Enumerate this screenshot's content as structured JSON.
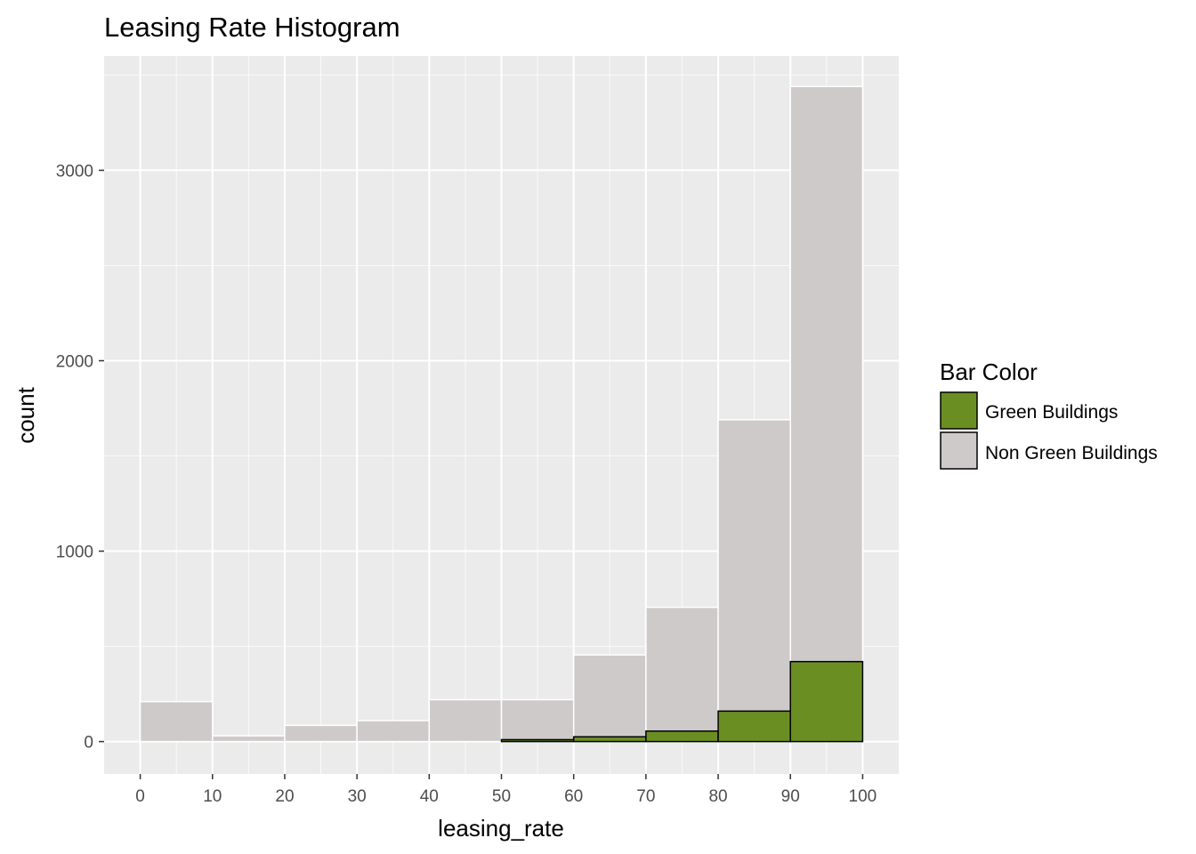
{
  "chart_data": {
    "type": "bar",
    "title": "Leasing Rate Histogram",
    "xlabel": "leasing_rate",
    "ylabel": "count",
    "bins": [
      [
        0,
        10
      ],
      [
        10,
        20
      ],
      [
        20,
        30
      ],
      [
        30,
        40
      ],
      [
        40,
        50
      ],
      [
        50,
        60
      ],
      [
        60,
        70
      ],
      [
        70,
        80
      ],
      [
        80,
        90
      ],
      [
        90,
        100
      ]
    ],
    "xlim": [
      -5,
      105
    ],
    "ylim": [
      -170,
      3600
    ],
    "x_ticks": [
      0,
      10,
      20,
      30,
      40,
      50,
      60,
      70,
      80,
      90,
      100
    ],
    "y_ticks": [
      0,
      1000,
      2000,
      3000
    ],
    "grid": true,
    "series": [
      {
        "name": "Non Green Buildings",
        "color": "#CDCAC9",
        "values": [
          210,
          30,
          85,
          110,
          220,
          220,
          455,
          705,
          1690,
          3440
        ]
      },
      {
        "name": "Green Buildings",
        "color": "#6B8E23",
        "values": [
          0,
          0,
          0,
          0,
          0,
          10,
          25,
          55,
          160,
          420
        ]
      }
    ],
    "legend": {
      "title": "Bar Color",
      "position": "right",
      "items": [
        {
          "label": "Green Buildings",
          "color": "#6B8E23"
        },
        {
          "label": "Non Green Buildings",
          "color": "#CDCAC9"
        }
      ]
    }
  }
}
